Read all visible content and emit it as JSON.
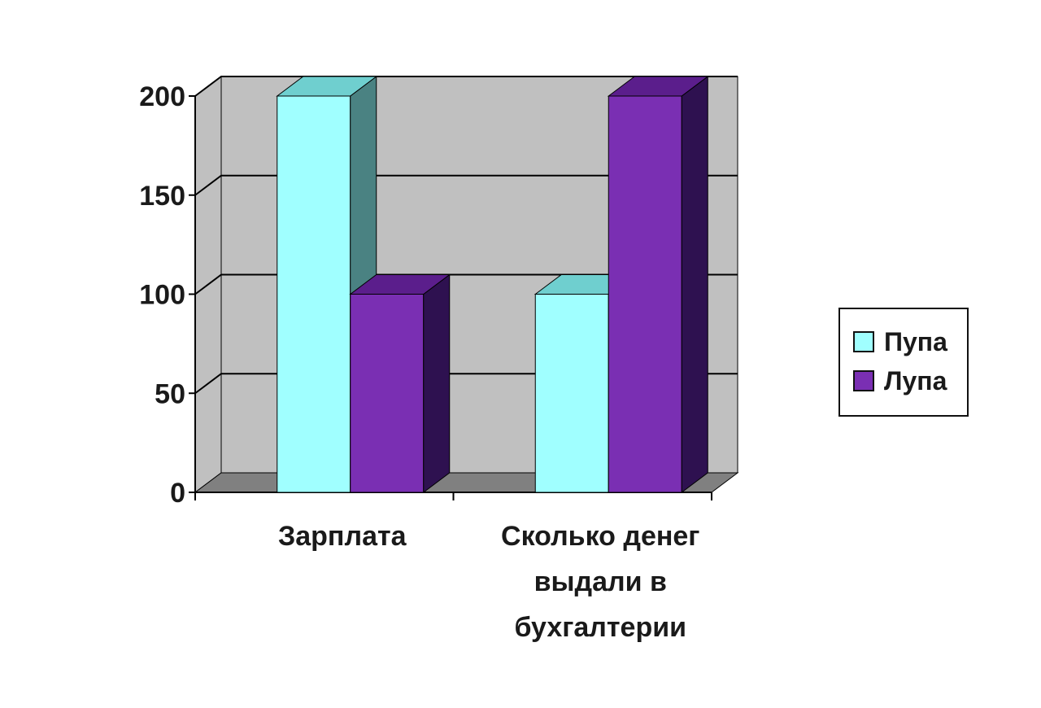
{
  "chart_data": {
    "type": "bar",
    "categories": [
      "Зарплата",
      "Сколько денег выдали в бухгалтерии"
    ],
    "category_lines": [
      [
        "Зарплата"
      ],
      [
        "Сколько денег",
        "выдали в",
        "бухгалтерии"
      ]
    ],
    "series": [
      {
        "name": "Пупа",
        "values": [
          200,
          100
        ],
        "color": "#a0ffff",
        "side_color": "#4a8282",
        "top_color": "#6fcfcf"
      },
      {
        "name": "Лупа",
        "values": [
          100,
          200
        ],
        "color": "#7a2fb3",
        "side_color": "#2e1150",
        "top_color": "#5b1e8c"
      }
    ],
    "ylim": [
      0,
      200
    ],
    "yticks": [
      0,
      50,
      100,
      150,
      200
    ],
    "grid": true,
    "legend_position": "right",
    "three_d": true,
    "wall_color": "#c0c0c0",
    "floor_color": "#808080"
  }
}
